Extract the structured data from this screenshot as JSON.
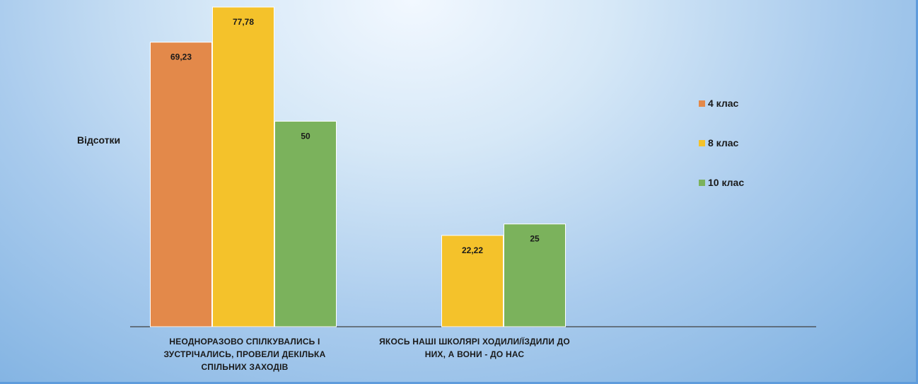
{
  "chart_data": {
    "type": "bar",
    "ylabel": "Відсотки",
    "categories": [
      [
        "НЕОДНОРАЗОВО СПІЛКУВАЛИСЬ І",
        "ЗУСТРІЧАЛИСЬ, ПРОВЕЛИ ДЕКІЛЬКА",
        "СПІЛЬНИХ ЗАХОДІВ"
      ],
      [
        "ЯКОСЬ НАШІ ШКОЛЯРІ ХОДИЛИ/ЇЗДИЛИ ДО",
        "НИХ, А ВОНИ - ДО НАС"
      ]
    ],
    "series": [
      {
        "name": "4 клас",
        "color": "#e3894a",
        "values": [
          69.23,
          null
        ],
        "labels": [
          "69,23",
          ""
        ]
      },
      {
        "name": "8 клас",
        "color": "#f4c22b",
        "values": [
          77.78,
          22.22
        ],
        "labels": [
          "77,78",
          "22,22"
        ]
      },
      {
        "name": "10 клас",
        "color": "#7bb25c",
        "values": [
          50,
          25
        ],
        "labels": [
          "50",
          "25"
        ]
      }
    ],
    "ylim": [
      0,
      80
    ],
    "grid": false,
    "legend_position": "right"
  }
}
